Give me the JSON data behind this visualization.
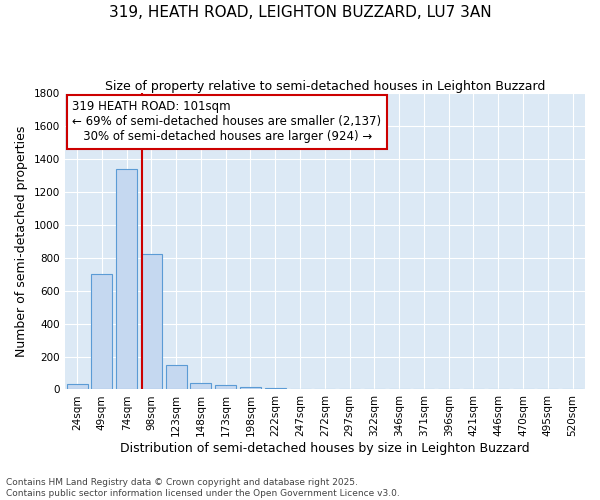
{
  "title": "319, HEATH ROAD, LEIGHTON BUZZARD, LU7 3AN",
  "subtitle": "Size of property relative to semi-detached houses in Leighton Buzzard",
  "xlabel": "Distribution of semi-detached houses by size in Leighton Buzzard",
  "ylabel": "Number of semi-detached properties",
  "categories": [
    "24sqm",
    "49sqm",
    "74sqm",
    "98sqm",
    "123sqm",
    "148sqm",
    "173sqm",
    "198sqm",
    "222sqm",
    "247sqm",
    "272sqm",
    "297sqm",
    "322sqm",
    "346sqm",
    "371sqm",
    "396sqm",
    "421sqm",
    "446sqm",
    "470sqm",
    "495sqm",
    "520sqm"
  ],
  "values": [
    35,
    700,
    1340,
    820,
    150,
    40,
    25,
    15,
    8,
    0,
    0,
    0,
    0,
    0,
    0,
    0,
    0,
    0,
    0,
    0,
    0
  ],
  "bar_color": "#c5d8f0",
  "bar_edgecolor": "#5b9bd5",
  "background_color": "#dce9f5",
  "property_size": 101,
  "pct_smaller": 69,
  "n_smaller": 2137,
  "pct_larger": 30,
  "n_larger": 924,
  "vline_color": "#cc0000",
  "annotation_edgecolor": "#cc0000",
  "ylim": [
    0,
    1800
  ],
  "yticks": [
    0,
    200,
    400,
    600,
    800,
    1000,
    1200,
    1400,
    1600,
    1800
  ],
  "footnote": "Contains HM Land Registry data © Crown copyright and database right 2025.\nContains public sector information licensed under the Open Government Licence v3.0.",
  "title_fontsize": 11,
  "subtitle_fontsize": 9,
  "xlabel_fontsize": 9,
  "ylabel_fontsize": 9,
  "tick_fontsize": 7.5,
  "annot_fontsize": 8.5,
  "footnote_fontsize": 6.5
}
